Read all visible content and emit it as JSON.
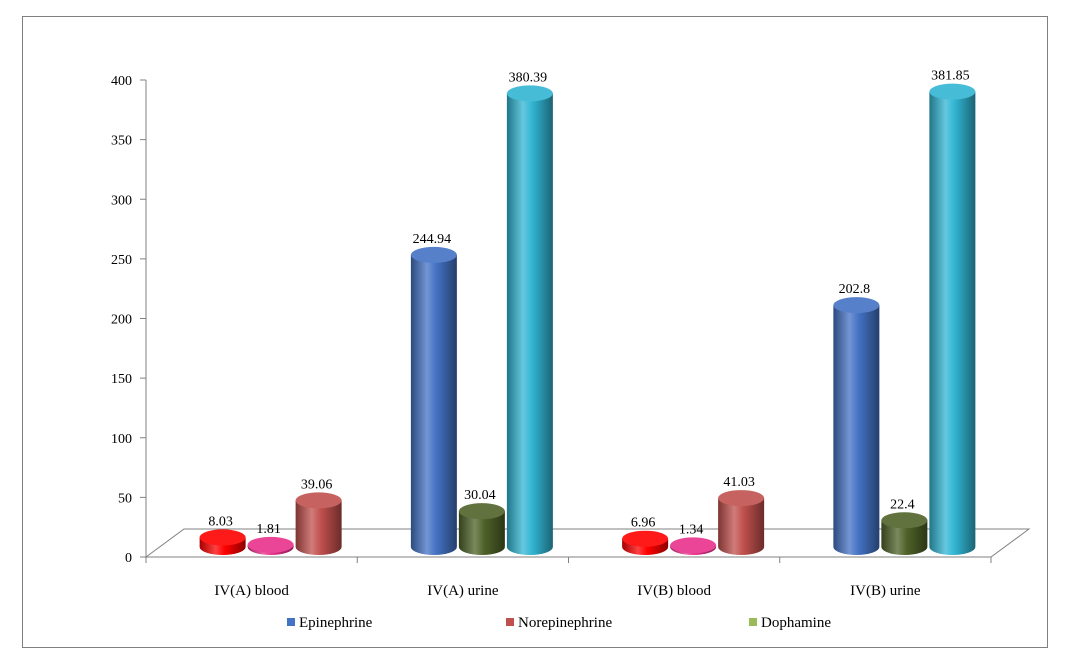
{
  "chart_data": {
    "type": "bar",
    "title": "",
    "xlabel": "",
    "ylabel": "",
    "ylim": [
      0,
      400
    ],
    "yticks": [
      0,
      50,
      100,
      150,
      200,
      250,
      300,
      350,
      400
    ],
    "grid": false,
    "legend_position": "bottom",
    "categories": [
      "IV(A) blood",
      "IV(A) urine",
      "IV(B) blood",
      "IV(B) urine"
    ],
    "series": [
      {
        "name": "Epinephrine",
        "values": [
          8.03,
          244.94,
          6.96,
          202.8
        ]
      },
      {
        "name": "Norepinephrine",
        "values": [
          1.81,
          30.04,
          1.34,
          22.4
        ]
      },
      {
        "name": "Dophamine",
        "values": [
          39.06,
          380.39,
          41.03,
          381.85
        ]
      }
    ],
    "data_labels": [
      [
        "8.03",
        "244.94",
        "6.96",
        "202.8"
      ],
      [
        "1.81",
        "30.04",
        "1.34",
        "22.4"
      ],
      [
        "39.06",
        "380.39",
        "41.03",
        "381.85"
      ]
    ],
    "legend_colors": [
      "#4472C4",
      "#C0504D",
      "#9BBB59"
    ],
    "bar_colors": [
      [
        "#FF0000",
        "#4472C4",
        "#FF0000",
        "#4472C4"
      ],
      [
        "#E8308A",
        "#4F6228",
        "#E8308A",
        "#4F6228"
      ],
      [
        "#C0504D",
        "#31B5D3",
        "#C0504D",
        "#31B5D3"
      ]
    ]
  }
}
